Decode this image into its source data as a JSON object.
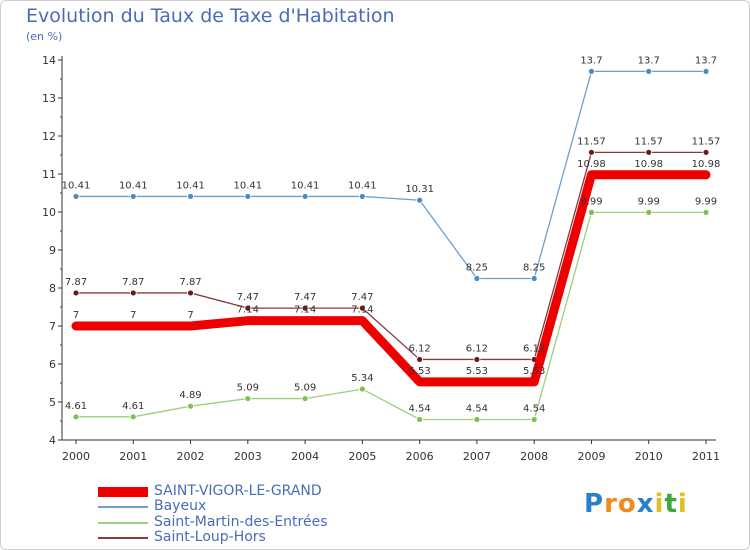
{
  "header": {
    "title": "Evolution du Taux de Taxe d'Habitation",
    "subtitle": "(en %)"
  },
  "chart_data": {
    "type": "line",
    "title": "Evolution du Taux de Taxe d'Habitation",
    "ylabel": "(en %)",
    "xlabel": "",
    "ylim": [
      4,
      14
    ],
    "yticks": [
      4,
      5,
      6,
      7,
      8,
      9,
      10,
      11,
      12,
      13,
      14
    ],
    "categories": [
      "2000",
      "2001",
      "2002",
      "2003",
      "2004",
      "2005",
      "2006",
      "2007",
      "2008",
      "2009",
      "2010",
      "2011"
    ],
    "series": [
      {
        "name": "SAINT-VIGOR-LE-GRAND",
        "color": "#ee0000",
        "values": [
          7,
          7,
          7,
          7.14,
          7.14,
          7.14,
          5.53,
          5.53,
          5.53,
          10.98,
          10.98,
          10.98
        ],
        "labels": [
          "7",
          "7",
          "7",
          "7.14",
          "7.14",
          "7.14",
          "5.53",
          "5.53",
          "5.53",
          "10.98",
          "10.98",
          "10.98"
        ]
      },
      {
        "name": "Bayeux",
        "color": "#6b9fd1",
        "values": [
          10.41,
          10.41,
          10.41,
          10.41,
          10.41,
          10.41,
          10.31,
          8.25,
          8.25,
          13.7,
          13.7,
          13.7
        ],
        "labels": [
          "10.41",
          "10.41",
          "10.41",
          "10.41",
          "10.41",
          "10.41",
          "10.31",
          "8.25",
          "8.25",
          "13.7",
          "13.7",
          "13.7"
        ]
      },
      {
        "name": "Saint-Martin-des-Entrées",
        "color": "#9cd07a",
        "values": [
          4.61,
          4.61,
          4.89,
          5.09,
          5.09,
          5.34,
          4.54,
          4.54,
          4.54,
          9.99,
          9.99,
          9.99
        ],
        "labels": [
          "4.61",
          "4.61",
          "4.89",
          "5.09",
          "5.09",
          "5.34",
          "4.54",
          "4.54",
          "4.54",
          "9.99",
          "9.99",
          "9.99"
        ]
      },
      {
        "name": "Saint-Loup-Hors",
        "color": "#8a3a3a",
        "values": [
          7.87,
          7.87,
          7.87,
          7.47,
          7.47,
          7.47,
          6.12,
          6.12,
          6.12,
          11.57,
          11.57,
          11.57
        ],
        "labels": [
          "7.87",
          "7.87",
          "7.87",
          "7.47",
          "7.47",
          "7.47",
          "6.12",
          "6.12",
          "6.12",
          "11.57",
          "11.57",
          "11.57"
        ]
      }
    ],
    "legend": "bottom-left",
    "grid": false
  },
  "legend": {
    "items": [
      "SAINT-VIGOR-LE-GRAND",
      "Bayeux",
      "Saint-Martin-des-Entrées",
      "Saint-Loup-Hors"
    ]
  },
  "logo": {
    "text": "Proxiti",
    "letters": [
      "P",
      "r",
      "o",
      "x",
      "i",
      "t",
      "i"
    ],
    "colors": [
      "#2a7fc9",
      "#f08a1c",
      "#f08a1c",
      "#2a7fc9",
      "#e0c020",
      "#3aa83a",
      "#e0c020"
    ]
  }
}
